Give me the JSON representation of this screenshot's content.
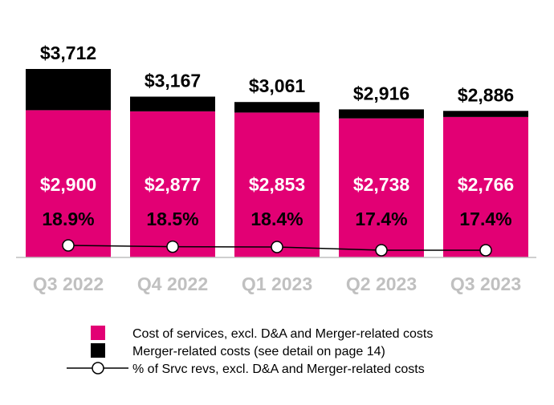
{
  "chart_data": {
    "type": "bar",
    "stacked": true,
    "categories": [
      "Q3 2022",
      "Q4 2022",
      "Q1 2023",
      "Q2 2023",
      "Q3 2023"
    ],
    "series": [
      {
        "name": "Cost of services, excl. D&A and Merger-related costs",
        "values": [
          2900,
          2877,
          2853,
          2738,
          2766
        ],
        "labels": [
          "$2,900",
          "$2,877",
          "$2,853",
          "$2,738",
          "$2,766"
        ],
        "color": "#E20074"
      },
      {
        "name": "Merger-related costs (see detail on page 14)",
        "values": [
          812,
          290,
          208,
          178,
          120
        ],
        "color": "#000000"
      }
    ],
    "totals": [
      3712,
      3167,
      3061,
      2916,
      2886
    ],
    "total_labels": [
      "$3,712",
      "$3,167",
      "$3,061",
      "$2,916",
      "$2,886"
    ],
    "line": {
      "name": "% of Srvc revs, excl. D&A and Merger-related costs",
      "values": [
        18.9,
        18.5,
        18.4,
        17.4,
        17.4
      ],
      "labels": [
        "18.9%",
        "18.5%",
        "18.4%",
        "17.4%",
        "17.4%"
      ],
      "color": "#000000"
    },
    "ylim": [
      0,
      3800
    ],
    "line_ylim": [
      16,
      20
    ],
    "grid": false,
    "legend": "bottom",
    "tick_color": "#C0C0C0"
  }
}
